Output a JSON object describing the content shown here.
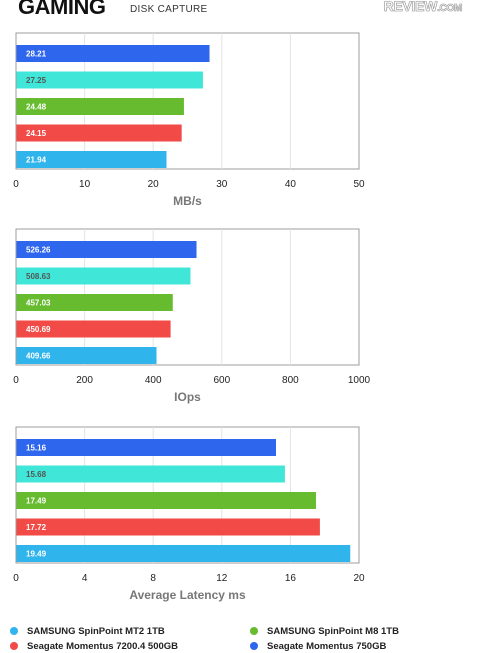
{
  "header": {
    "title": "GAMING",
    "subtitle": "DISK CAPTURE",
    "logo_main": "REVIEW",
    "logo_suffix": ".COM"
  },
  "colors": {
    "samsung_mt2": "#2fb4ec",
    "seagate_7200": "#f24a46",
    "samsung_m8": "#66bb2f",
    "samsung_m8_alt": "#40e6d8",
    "seagate_750": "#2f66ee"
  },
  "chart_data": [
    {
      "type": "bar",
      "orientation": "horizontal",
      "xlabel": "MB/s",
      "xlim": [
        0,
        50
      ],
      "ticks": [
        "0",
        "10",
        "20",
        "30",
        "40",
        "50"
      ],
      "grid": true,
      "values": [
        {
          "label": "28.21",
          "value": 28.21,
          "color": "#2f66ee",
          "text_color": "#ffffff"
        },
        {
          "label": "27.25",
          "value": 27.25,
          "color": "#40e6d8",
          "text_color": "#555555"
        },
        {
          "label": "24.48",
          "value": 24.48,
          "color": "#66bb2f",
          "text_color": "#ffffff"
        },
        {
          "label": "24.15",
          "value": 24.15,
          "color": "#f24a46",
          "text_color": "#ffffff"
        },
        {
          "label": "21.94",
          "value": 21.94,
          "color": "#2fb4ec",
          "text_color": "#ffffff"
        }
      ]
    },
    {
      "type": "bar",
      "orientation": "horizontal",
      "xlabel": "IOps",
      "xlim": [
        0,
        1000
      ],
      "ticks": [
        "0",
        "200",
        "400",
        "600",
        "800",
        "1000"
      ],
      "grid": true,
      "values": [
        {
          "label": "526.26",
          "value": 526.26,
          "color": "#2f66ee",
          "text_color": "#ffffff"
        },
        {
          "label": "508.63",
          "value": 508.63,
          "color": "#40e6d8",
          "text_color": "#555555"
        },
        {
          "label": "457.03",
          "value": 457.03,
          "color": "#66bb2f",
          "text_color": "#ffffff"
        },
        {
          "label": "450.69",
          "value": 450.69,
          "color": "#f24a46",
          "text_color": "#ffffff"
        },
        {
          "label": "409.66",
          "value": 409.66,
          "color": "#2fb4ec",
          "text_color": "#ffffff"
        }
      ]
    },
    {
      "type": "bar",
      "orientation": "horizontal",
      "xlabel": "Average Latency ms",
      "xlim": [
        0,
        20
      ],
      "ticks": [
        "0",
        "4",
        "8",
        "12",
        "16",
        "20"
      ],
      "grid": true,
      "values": [
        {
          "label": "15.16",
          "value": 15.16,
          "color": "#2f66ee",
          "text_color": "#ffffff"
        },
        {
          "label": "15.68",
          "value": 15.68,
          "color": "#40e6d8",
          "text_color": "#555555"
        },
        {
          "label": "17.49",
          "value": 17.49,
          "color": "#66bb2f",
          "text_color": "#ffffff"
        },
        {
          "label": "17.72",
          "value": 17.72,
          "color": "#f24a46",
          "text_color": "#ffffff"
        },
        {
          "label": "19.49",
          "value": 19.49,
          "color": "#2fb4ec",
          "text_color": "#ffffff"
        }
      ]
    }
  ],
  "legend": [
    {
      "label": "SAMSUNG SpinPoint MT2 1TB",
      "color": "#2fb4ec"
    },
    {
      "label": "SAMSUNG SpinPoint M8 1TB",
      "color": "#66bb2f"
    },
    {
      "label": "Seagate Momentus 7200.4 500GB",
      "color": "#f24a46"
    },
    {
      "label": "Seagate Momentus 750GB",
      "color": "#2f66ee"
    }
  ]
}
